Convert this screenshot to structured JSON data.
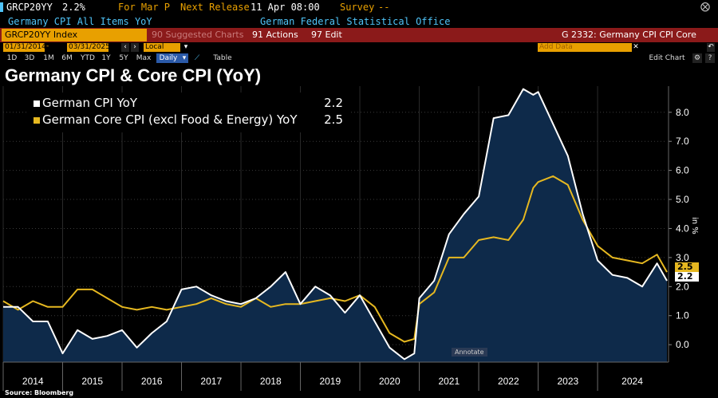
{
  "header": {
    "ticker": "GRCP20YY",
    "last_value": "2.2%",
    "for_label": "For Mar P",
    "next_release_label": "Next Release",
    "next_release": "11 Apr 08:00",
    "survey_label": "Survey",
    "survey_value": "--",
    "description": "Germany CPI All Items YoY",
    "source_org": "German Federal Statistical Office"
  },
  "menubar": {
    "security": "GRCP20YY Index",
    "suggested": "90 Suggested Charts",
    "actions": "91 Actions",
    "edit": "97 Edit",
    "chart_id": "G 2332: Germany CPI CPI Core"
  },
  "controls": {
    "start_date": "01/31/2014",
    "end_date": "03/31/2025",
    "currency": "Local CCY",
    "add_data_placeholder": "Add Data",
    "edit_chart": "Edit Chart"
  },
  "tabs": [
    "1D",
    "3D",
    "1M",
    "6M",
    "YTD",
    "1Y",
    "5Y",
    "Max",
    "Daily",
    "Table"
  ],
  "source": "Source: Bloomberg",
  "annotate": "Annotate",
  "colors": {
    "cpi_line": "#ffffff",
    "core_line": "#e6b820",
    "area_fill": "#0e2a4a",
    "menubar": "#8b1a1a",
    "input_bg": "#e8a000"
  },
  "chart_data": {
    "type": "line",
    "title": "Germany CPI & Core CPI (YoY)",
    "ylabel": "in %",
    "xlabel": "",
    "ylim": [
      -0.6,
      8.9
    ],
    "yticks": [
      "0.0",
      "1.0",
      "2.0",
      "3.0",
      "4.0",
      "5.0",
      "6.0",
      "7.0",
      "8.0"
    ],
    "ytick_values": [
      0,
      1,
      2,
      3,
      4,
      5,
      6,
      7,
      8
    ],
    "xticks": [
      "2014",
      "2015",
      "2016",
      "2017",
      "2018",
      "2019",
      "2020",
      "2021",
      "2022",
      "2023",
      "2024"
    ],
    "x_range": [
      "2014-01",
      "2025-03"
    ],
    "legend": "top-left",
    "grid": true,
    "series": [
      {
        "name": "German CPI YoY",
        "last": "2.2",
        "area": true,
        "points": [
          [
            "2014-01",
            1.3
          ],
          [
            "2014-04",
            1.3
          ],
          [
            "2014-07",
            0.8
          ],
          [
            "2014-10",
            0.8
          ],
          [
            "2015-01",
            -0.3
          ],
          [
            "2015-04",
            0.5
          ],
          [
            "2015-07",
            0.2
          ],
          [
            "2015-10",
            0.3
          ],
          [
            "2016-01",
            0.5
          ],
          [
            "2016-04",
            -0.1
          ],
          [
            "2016-07",
            0.4
          ],
          [
            "2016-10",
            0.8
          ],
          [
            "2017-01",
            1.9
          ],
          [
            "2017-04",
            2.0
          ],
          [
            "2017-07",
            1.7
          ],
          [
            "2017-10",
            1.5
          ],
          [
            "2018-01",
            1.4
          ],
          [
            "2018-04",
            1.6
          ],
          [
            "2018-07",
            2.0
          ],
          [
            "2018-10",
            2.5
          ],
          [
            "2019-01",
            1.4
          ],
          [
            "2019-04",
            2.0
          ],
          [
            "2019-07",
            1.7
          ],
          [
            "2019-10",
            1.1
          ],
          [
            "2020-01",
            1.7
          ],
          [
            "2020-04",
            0.8
          ],
          [
            "2020-07",
            -0.1
          ],
          [
            "2020-10",
            -0.5
          ],
          [
            "2020-12",
            -0.3
          ],
          [
            "2021-01",
            1.6
          ],
          [
            "2021-04",
            2.2
          ],
          [
            "2021-07",
            3.8
          ],
          [
            "2021-10",
            4.5
          ],
          [
            "2022-01",
            5.1
          ],
          [
            "2022-04",
            7.8
          ],
          [
            "2022-07",
            7.9
          ],
          [
            "2022-10",
            8.8
          ],
          [
            "2022-12",
            8.6
          ],
          [
            "2023-01",
            8.7
          ],
          [
            "2023-04",
            7.6
          ],
          [
            "2023-07",
            6.5
          ],
          [
            "2023-10",
            4.5
          ],
          [
            "2024-01",
            2.9
          ],
          [
            "2024-04",
            2.4
          ],
          [
            "2024-07",
            2.3
          ],
          [
            "2024-10",
            2.0
          ],
          [
            "2025-01",
            2.8
          ],
          [
            "2025-03",
            2.2
          ]
        ]
      },
      {
        "name": "German Core CPI (excl Food & Energy) YoY",
        "last": "2.5",
        "area": false,
        "points": [
          [
            "2014-01",
            1.5
          ],
          [
            "2014-04",
            1.2
          ],
          [
            "2014-07",
            1.5
          ],
          [
            "2014-10",
            1.3
          ],
          [
            "2015-01",
            1.3
          ],
          [
            "2015-04",
            1.9
          ],
          [
            "2015-07",
            1.9
          ],
          [
            "2015-10",
            1.6
          ],
          [
            "2016-01",
            1.3
          ],
          [
            "2016-04",
            1.2
          ],
          [
            "2016-07",
            1.3
          ],
          [
            "2016-10",
            1.2
          ],
          [
            "2017-01",
            1.3
          ],
          [
            "2017-04",
            1.4
          ],
          [
            "2017-07",
            1.6
          ],
          [
            "2017-10",
            1.4
          ],
          [
            "2018-01",
            1.3
          ],
          [
            "2018-04",
            1.6
          ],
          [
            "2018-07",
            1.3
          ],
          [
            "2018-10",
            1.4
          ],
          [
            "2019-01",
            1.4
          ],
          [
            "2019-04",
            1.5
          ],
          [
            "2019-07",
            1.6
          ],
          [
            "2019-10",
            1.5
          ],
          [
            "2020-01",
            1.7
          ],
          [
            "2020-04",
            1.3
          ],
          [
            "2020-07",
            0.4
          ],
          [
            "2020-10",
            0.1
          ],
          [
            "2020-12",
            0.2
          ],
          [
            "2021-01",
            1.4
          ],
          [
            "2021-04",
            1.8
          ],
          [
            "2021-07",
            3.0
          ],
          [
            "2021-10",
            3.0
          ],
          [
            "2022-01",
            3.6
          ],
          [
            "2022-04",
            3.7
          ],
          [
            "2022-07",
            3.6
          ],
          [
            "2022-10",
            4.3
          ],
          [
            "2022-12",
            5.4
          ],
          [
            "2023-01",
            5.6
          ],
          [
            "2023-04",
            5.8
          ],
          [
            "2023-07",
            5.5
          ],
          [
            "2023-10",
            4.3
          ],
          [
            "2024-01",
            3.4
          ],
          [
            "2024-04",
            3.0
          ],
          [
            "2024-07",
            2.9
          ],
          [
            "2024-10",
            2.8
          ],
          [
            "2025-01",
            3.1
          ],
          [
            "2025-03",
            2.5
          ]
        ]
      }
    ]
  }
}
